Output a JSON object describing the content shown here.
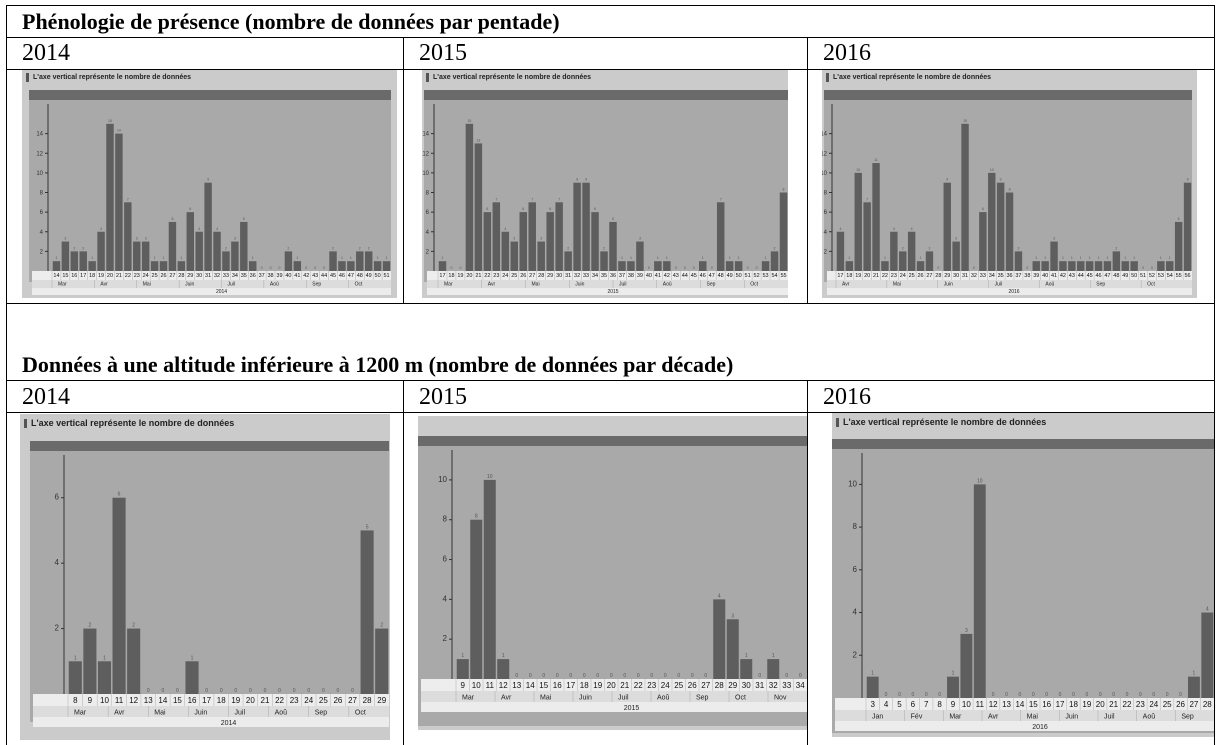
{
  "sections": {
    "pentade_title": "Phénologie de présence (nombre de données par pentade)",
    "decade_title": "Données à une altitude inférieure à 1200 m (nombre de données par décade)"
  },
  "years": [
    "2014",
    "2015",
    "2016"
  ],
  "caption": "L'axe vertical représente le nombre de données",
  "colors": {
    "panel_bg": "#cbcbcb",
    "plot_bg": "#a9a9a9",
    "bar": "#5e5e5e",
    "header_bar": "#6a6a6a"
  },
  "chart_data": [
    {
      "type": "bar",
      "id": "pentade-2014",
      "title": "",
      "xlabel": "2014",
      "ylabel": "",
      "categories": [
        "14",
        "15",
        "16",
        "17",
        "18",
        "19",
        "20",
        "21",
        "22",
        "23",
        "24",
        "25",
        "26",
        "27",
        "28",
        "29",
        "30",
        "31",
        "32",
        "33",
        "34",
        "35",
        "36",
        "37",
        "38",
        "39",
        "40",
        "41",
        "42",
        "43",
        "44",
        "45",
        "46",
        "47",
        "48",
        "49",
        "50",
        "51"
      ],
      "values": [
        1,
        3,
        2,
        2,
        1,
        4,
        15,
        14,
        7,
        3,
        3,
        1,
        1,
        5,
        1,
        6,
        4,
        9,
        4,
        2,
        3,
        5,
        1,
        0,
        0,
        0,
        2,
        1,
        0,
        0,
        0,
        2,
        1,
        1,
        2,
        2,
        1,
        1
      ],
      "yticks": [
        2,
        4,
        6,
        8,
        10,
        12,
        14
      ],
      "ylim": [
        0,
        16
      ],
      "months": [
        "Mar",
        "Avr",
        "Mai",
        "Juin",
        "Juil",
        "Aoû",
        "Sep",
        "Oct"
      ],
      "grid": false,
      "legend": false
    },
    {
      "type": "bar",
      "id": "pentade-2015",
      "title": "",
      "xlabel": "2015",
      "ylabel": "",
      "categories": [
        "17",
        "18",
        "19",
        "20",
        "21",
        "22",
        "23",
        "24",
        "25",
        "26",
        "27",
        "28",
        "29",
        "30",
        "31",
        "32",
        "33",
        "34",
        "35",
        "36",
        "37",
        "38",
        "39",
        "40",
        "41",
        "42",
        "43",
        "44",
        "45",
        "46",
        "47",
        "48",
        "49",
        "50",
        "51",
        "52",
        "53",
        "54",
        "55"
      ],
      "values": [
        1,
        0,
        0,
        15,
        13,
        6,
        7,
        4,
        3,
        6,
        7,
        3,
        6,
        7,
        2,
        9,
        9,
        6,
        2,
        5,
        1,
        1,
        3,
        0,
        1,
        1,
        0,
        0,
        0,
        1,
        0,
        7,
        1,
        1,
        0,
        0,
        1,
        2,
        8
      ],
      "yticks": [
        2,
        4,
        6,
        8,
        10,
        12,
        14
      ],
      "ylim": [
        0,
        16
      ],
      "months": [
        "Mar",
        "Avr",
        "Mai",
        "Juin",
        "Juil",
        "Aoû",
        "Sep",
        "Oct"
      ],
      "grid": false,
      "legend": false
    },
    {
      "type": "bar",
      "id": "pentade-2016",
      "title": "",
      "xlabel": "2016",
      "ylabel": "",
      "categories": [
        "17",
        "18",
        "19",
        "20",
        "21",
        "22",
        "23",
        "24",
        "25",
        "26",
        "27",
        "28",
        "29",
        "30",
        "31",
        "32",
        "33",
        "34",
        "35",
        "36",
        "37",
        "38",
        "39",
        "40",
        "41",
        "42",
        "43",
        "44",
        "45",
        "46",
        "47",
        "48",
        "49",
        "50",
        "51",
        "52",
        "53",
        "54",
        "55",
        "56"
      ],
      "values": [
        4,
        1,
        10,
        7,
        11,
        1,
        4,
        2,
        4,
        1,
        2,
        0,
        9,
        3,
        15,
        0,
        6,
        10,
        9,
        8,
        2,
        0,
        1,
        1,
        3,
        1,
        1,
        1,
        1,
        1,
        1,
        2,
        1,
        1,
        0,
        0,
        1,
        1,
        5,
        9
      ],
      "yticks": [
        2,
        4,
        6,
        8,
        10,
        12,
        14
      ],
      "ylim": [
        0,
        16
      ],
      "months": [
        "Avr",
        "Mai",
        "Juin",
        "Juil",
        "Aoû",
        "Sep",
        "Oct"
      ],
      "grid": false,
      "legend": false
    },
    {
      "type": "bar",
      "id": "decade-2014",
      "title": "",
      "xlabel": "2014",
      "ylabel": "",
      "categories": [
        "8",
        "9",
        "10",
        "11",
        "12",
        "13",
        "14",
        "15",
        "16",
        "17",
        "18",
        "19",
        "20",
        "21",
        "22",
        "23",
        "24",
        "25",
        "26",
        "27",
        "28",
        "29"
      ],
      "values": [
        1,
        2,
        1,
        6,
        2,
        0,
        0,
        0,
        1,
        0,
        0,
        0,
        0,
        0,
        0,
        0,
        0,
        0,
        0,
        0,
        5,
        2
      ],
      "yticks": [
        2,
        4,
        6
      ],
      "ylim": [
        0,
        7
      ],
      "months": [
        "Mar",
        "Avr",
        "Mai",
        "Juin",
        "Juil",
        "Aoû",
        "Sep",
        "Oct"
      ],
      "grid": false,
      "legend": false
    },
    {
      "type": "bar",
      "id": "decade-2015",
      "title": "",
      "xlabel": "2015",
      "ylabel": "",
      "categories": [
        "9",
        "10",
        "11",
        "12",
        "13",
        "14",
        "15",
        "16",
        "17",
        "18",
        "19",
        "20",
        "21",
        "22",
        "23",
        "24",
        "25",
        "26",
        "27",
        "28",
        "29",
        "30",
        "31",
        "32",
        "33",
        "34"
      ],
      "values": [
        1,
        8,
        10,
        1,
        0,
        0,
        0,
        0,
        0,
        0,
        0,
        0,
        0,
        0,
        0,
        0,
        0,
        0,
        0,
        4,
        3,
        1,
        0,
        1,
        0,
        0
      ],
      "yticks": [
        2,
        4,
        6,
        8,
        10
      ],
      "ylim": [
        0,
        11
      ],
      "months": [
        "Mar",
        "Avr",
        "Mai",
        "Juin",
        "Juil",
        "Aoû",
        "Sep",
        "Oct",
        "Nov"
      ],
      "grid": false,
      "legend": false
    },
    {
      "type": "bar",
      "id": "decade-2016",
      "title": "",
      "xlabel": "2016",
      "ylabel": "",
      "categories": [
        "3",
        "4",
        "5",
        "6",
        "7",
        "8",
        "9",
        "10",
        "11",
        "12",
        "13",
        "14",
        "15",
        "16",
        "17",
        "18",
        "19",
        "20",
        "21",
        "22",
        "23",
        "24",
        "25",
        "26",
        "27",
        "28"
      ],
      "values": [
        1,
        0,
        0,
        0,
        0,
        0,
        1,
        3,
        10,
        0,
        0,
        0,
        0,
        0,
        0,
        0,
        0,
        0,
        0,
        0,
        0,
        0,
        0,
        0,
        1,
        4
      ],
      "yticks": [
        2,
        4,
        6,
        8,
        10
      ],
      "ylim": [
        0,
        11
      ],
      "months": [
        "Jan",
        "Fév",
        "Mar",
        "Avr",
        "Mai",
        "Juin",
        "Juil",
        "Aoû",
        "Sep"
      ],
      "grid": false,
      "legend": false
    }
  ]
}
